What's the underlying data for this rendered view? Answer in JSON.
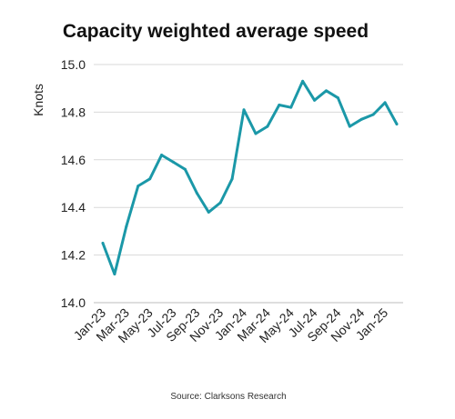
{
  "chart_data": {
    "type": "line",
    "title": "Capacity weighted average speed",
    "ylabel": "Knots",
    "xlabel": "",
    "source": "Source: Clarksons Research",
    "ylim": [
      14.0,
      15.0
    ],
    "yticks": [
      "14.0",
      "14.2",
      "14.4",
      "14.6",
      "14.8",
      "15.0"
    ],
    "grid": "horizontal",
    "x": [
      "Jan-23",
      "Feb-23",
      "Mar-23",
      "Apr-23",
      "May-23",
      "Jun-23",
      "Jul-23",
      "Aug-23",
      "Sep-23",
      "Oct-23",
      "Nov-23",
      "Dec-23",
      "Jan-24",
      "Feb-24",
      "Mar-24",
      "Apr-24",
      "May-24",
      "Jun-24",
      "Jul-24",
      "Aug-24",
      "Sep-24",
      "Oct-24",
      "Nov-24",
      "Dec-24",
      "Jan-25",
      "Feb-25"
    ],
    "xtick_labels": [
      "Jan-23",
      "Mar-23",
      "May-23",
      "Jul-23",
      "Sep-23",
      "Nov-23",
      "Jan-24",
      "Mar-24",
      "May-24",
      "Jul-24",
      "Sep-24",
      "Nov-24",
      "Jan-25"
    ],
    "series": [
      {
        "values": [
          14.25,
          14.12,
          14.32,
          14.49,
          14.52,
          14.62,
          14.59,
          14.56,
          14.46,
          14.38,
          14.42,
          14.52,
          14.81,
          14.71,
          14.74,
          14.83,
          14.82,
          14.93,
          14.85,
          14.89,
          14.86,
          14.74,
          14.77,
          14.79,
          14.84,
          14.75
        ],
        "color": "#1b98a8"
      }
    ]
  }
}
